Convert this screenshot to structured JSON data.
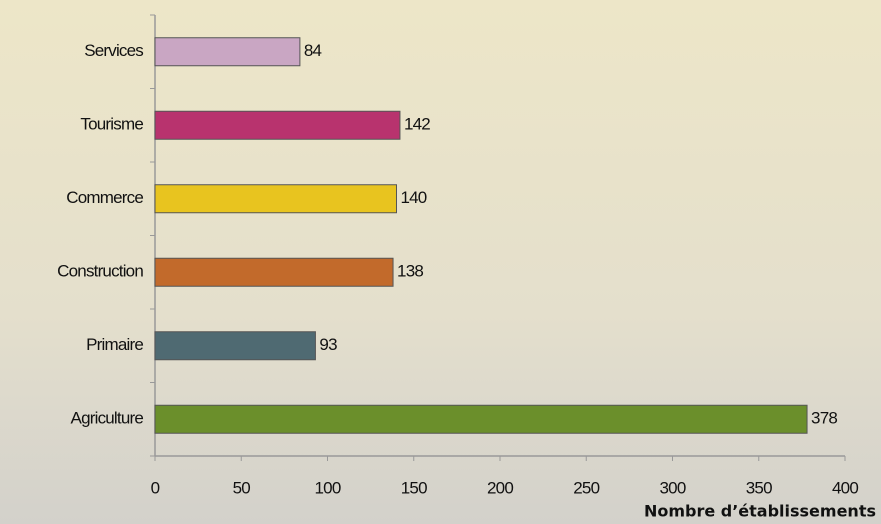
{
  "chart_data": {
    "type": "barh",
    "x_label": "Nombre d’établissements",
    "categories": [
      "Services",
      "Tourisme",
      "Commerce",
      "Construction",
      "Primaire",
      "Agriculture"
    ],
    "values": [
      84,
      142,
      140,
      138,
      93,
      378
    ],
    "colors": [
      "#c9a6c3",
      "#b8336e",
      "#e8c41f",
      "#c26a2b",
      "#4f6a72",
      "#6b8f2b"
    ],
    "xlim": [
      0,
      400
    ],
    "xticks": [
      0,
      50,
      100,
      150,
      200,
      250,
      300,
      350,
      400
    ]
  }
}
